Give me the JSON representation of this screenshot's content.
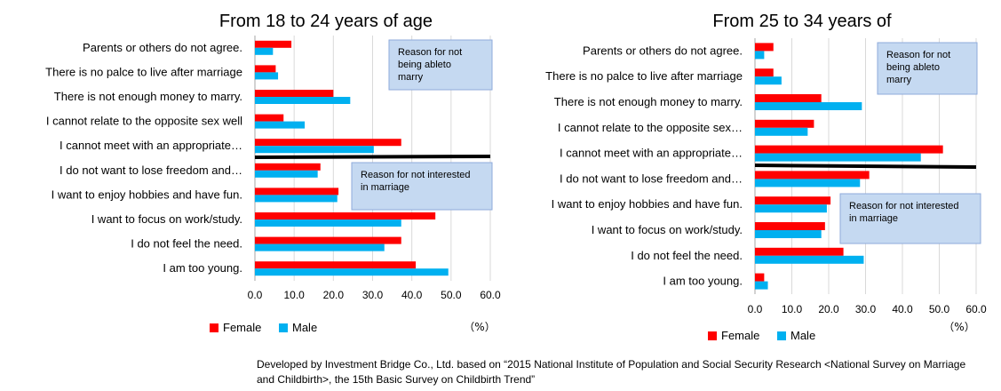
{
  "chart_data": [
    {
      "type": "bar",
      "orientation": "horizontal",
      "title": "From 18 to 24 years of age",
      "categories": [
        "Parents or others do not agree.",
        "There is no palce to live after marriage",
        "There is not enough money to marry.",
        "I cannot relate to the opposite sex well",
        "I cannot meet with an appropriate…",
        "I do not want to lose freedom and…",
        "I want to enjoy hobbies and have fun.",
        "I want to focus on work/study.",
        "I do not feel the need.",
        "I am too young."
      ],
      "series": [
        {
          "name": "Female",
          "color": "#ff0000",
          "values": [
            9.3,
            5.3,
            20.0,
            7.3,
            37.3,
            16.7,
            21.3,
            46.0,
            37.3,
            41.0
          ]
        },
        {
          "name": "Male",
          "color": "#00b0f0",
          "values": [
            4.6,
            5.9,
            24.3,
            12.7,
            30.3,
            16.0,
            21.0,
            37.3,
            33.0,
            49.3
          ]
        }
      ],
      "xlim": [
        0,
        60
      ],
      "xticks": [
        "0.0",
        "10.0",
        "20.0",
        "30.0",
        "40.0",
        "50.0",
        "60.0"
      ],
      "unit": "（%）",
      "grid": true,
      "legend": "bottom",
      "annotations": [
        "Reason for not being ableto marry",
        "Reason for not interested in marriage"
      ]
    },
    {
      "type": "bar",
      "orientation": "horizontal",
      "title": "From 25 to 34 years of",
      "categories": [
        "Parents or others do not agree.",
        "There is no palce to live after marriage",
        "There is not enough money to marry.",
        "I cannot relate to the opposite sex…",
        "I cannot meet with an appropriate…",
        "I do not want to lose freedom and…",
        "I want to enjoy hobbies and have fun.",
        "I want to focus on work/study.",
        "I do not feel the need.",
        "I am too young."
      ],
      "series": [
        {
          "name": "Female",
          "color": "#ff0000",
          "values": [
            5.0,
            5.0,
            18.0,
            16.0,
            51.0,
            31.0,
            20.5,
            19.0,
            24.0,
            2.5
          ]
        },
        {
          "name": "Male",
          "color": "#00b0f0",
          "values": [
            2.5,
            7.2,
            29.0,
            14.3,
            45.0,
            28.5,
            19.5,
            18.0,
            29.5,
            3.5
          ]
        }
      ],
      "xlim": [
        0,
        60
      ],
      "xticks": [
        "0.0",
        "10.0",
        "20.0",
        "30.0",
        "40.0",
        "50.0",
        "60.0"
      ],
      "unit": "（%）",
      "grid": true,
      "legend": "bottom",
      "annotations": [
        "Reason for not being ableto marry",
        "Reason for not interested in marriage"
      ]
    }
  ],
  "source_note": "Developed by Investment Bridge Co., Ltd. based on “2015 National Institute of Population and Social Security Research <National Survey on Marriage and Childbirth>, the 15th Basic Survey on Childbirth Trend”",
  "colors": {
    "female": "#ff0000",
    "male": "#00b0f0",
    "annotation_box": "#c5d9f1",
    "grid": "#d9d9d9"
  }
}
